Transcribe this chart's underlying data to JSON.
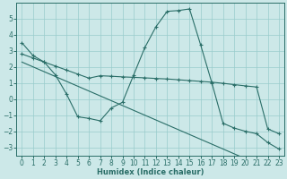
{
  "xlabel": "Humidex (Indice chaleur)",
  "bg_color": "#cce8e8",
  "grid_color": "#99cccc",
  "line_color": "#2a6e68",
  "xlim": [
    -0.5,
    23.5
  ],
  "ylim": [
    -3.5,
    6.0
  ],
  "xticks": [
    0,
    1,
    2,
    3,
    4,
    5,
    6,
    7,
    8,
    9,
    10,
    11,
    12,
    13,
    14,
    15,
    16,
    17,
    18,
    19,
    20,
    21,
    22,
    23
  ],
  "yticks": [
    -3,
    -2,
    -1,
    0,
    1,
    2,
    3,
    4,
    5
  ],
  "curve1_x": [
    0,
    1,
    2,
    3,
    4,
    5,
    6,
    7,
    8,
    9,
    10,
    11,
    12,
    13,
    14,
    15,
    16,
    17,
    18,
    19,
    20,
    21,
    22,
    23
  ],
  "curve1_y": [
    3.5,
    2.7,
    2.3,
    1.5,
    0.3,
    -1.1,
    -1.2,
    -1.35,
    -0.55,
    -0.2,
    1.5,
    3.2,
    4.5,
    5.45,
    5.5,
    5.6,
    3.35,
    1.0,
    -1.5,
    -1.8,
    -2.0,
    -2.15,
    -2.7,
    -3.1
  ],
  "curve2_x": [
    0,
    1,
    2,
    3,
    4,
    5,
    6,
    7,
    8,
    9,
    10,
    11,
    12,
    13,
    14,
    15,
    16,
    17,
    18,
    19,
    20,
    21,
    22,
    23
  ],
  "curve2_y": [
    2.8,
    2.55,
    2.3,
    2.05,
    1.8,
    1.55,
    1.3,
    1.45,
    1.42,
    1.38,
    1.35,
    1.32,
    1.28,
    1.25,
    1.2,
    1.15,
    1.1,
    1.05,
    0.98,
    0.9,
    0.82,
    0.75,
    -1.85,
    -2.15
  ],
  "curve3_x": [
    0,
    1,
    2,
    3,
    4,
    5,
    6,
    7,
    8,
    9,
    10,
    11,
    12,
    13,
    14,
    15,
    16,
    17,
    18,
    19,
    20,
    21,
    22,
    23
  ],
  "curve3_y": [
    2.3,
    2.0,
    1.7,
    1.4,
    1.1,
    0.8,
    0.5,
    0.2,
    -0.1,
    -0.4,
    -0.7,
    -1.0,
    -1.3,
    -1.6,
    -1.9,
    -2.2,
    -2.5,
    -2.8,
    -3.1,
    -3.4,
    -3.7,
    -4.0,
    -4.3,
    -4.6
  ]
}
